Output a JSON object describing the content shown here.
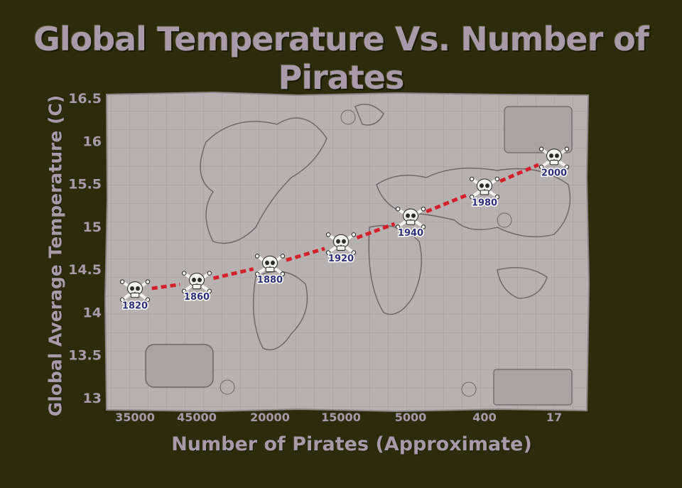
{
  "chart_data": {
    "type": "line",
    "title": "Global Temperature Vs. Number of Pirates",
    "xlabel": "Number of Pirates (Approximate)",
    "ylabel": "Global Average Temperature (C)",
    "categories": [
      "35000",
      "45000",
      "20000",
      "15000",
      "5000",
      "400",
      "17"
    ],
    "y_ticks": [
      "13",
      "13.5",
      "14",
      "14.5",
      "15",
      "15.5",
      "16",
      "16.5"
    ],
    "ylim": [
      13,
      16.5
    ],
    "grid": false,
    "series": [
      {
        "values": [
          14.25,
          14.35,
          14.55,
          14.8,
          15.1,
          15.45,
          15.8
        ],
        "point_labels": [
          "1820",
          "1860",
          "1880",
          "1920",
          "1940",
          "1980",
          "2000"
        ]
      }
    ],
    "marker": "skull-and-crossbones-icon",
    "line_style": "dashed",
    "colors": {
      "line": "#d4202a",
      "marker": "#f2f2ee",
      "point_label": "#2e2e7a",
      "text": "#a99aa9",
      "background": "#2c2c0c",
      "map_paper": "#b7b1b1",
      "map_ink": "#6c6466"
    },
    "background_image": "antique-world-map"
  }
}
